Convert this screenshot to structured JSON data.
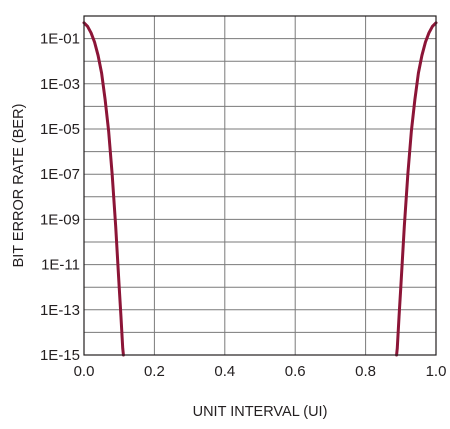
{
  "chart_data": {
    "type": "line",
    "title": "",
    "xlabel": "UNIT INTERVAL (UI)",
    "ylabel": "BIT ERROR RATE (BER)",
    "x_scale": "linear",
    "y_scale": "log",
    "xlim": [
      0.0,
      1.0
    ],
    "ylim": [
      1e-15,
      1
    ],
    "x_ticks": [
      0.0,
      0.2,
      0.4,
      0.6,
      0.8,
      1.0
    ],
    "x_tick_labels": [
      "0.0",
      "0.2",
      "0.4",
      "0.6",
      "0.8",
      "1.0"
    ],
    "y_ticks": [
      1e-15,
      1e-13,
      1e-11,
      1e-09,
      1e-07,
      1e-05,
      0.001,
      0.1
    ],
    "y_tick_labels": [
      "1E-15",
      "1E-13",
      "1E-11",
      "1E-09",
      "1E-07",
      "1E-05",
      "1E-03",
      "1E-01"
    ],
    "grid": true,
    "series": [
      {
        "color": "#8c1537",
        "points": [
          [
            0.0,
            0.5
          ],
          [
            0.01,
            0.35
          ],
          [
            0.02,
            0.18
          ],
          [
            0.03,
            0.07
          ],
          [
            0.04,
            0.018
          ],
          [
            0.05,
            0.003
          ],
          [
            0.06,
            0.0002
          ],
          [
            0.07,
            8e-06
          ],
          [
            0.08,
            1e-07
          ],
          [
            0.09,
            5e-10
          ],
          [
            0.1,
            1e-12
          ],
          [
            0.105,
            5e-14
          ],
          [
            0.11,
            2e-15
          ],
          [
            0.112,
            1e-15
          ]
        ]
      },
      {
        "color": "#8c1537",
        "points": [
          [
            0.888,
            1e-15
          ],
          [
            0.89,
            2e-15
          ],
          [
            0.895,
            5e-14
          ],
          [
            0.9,
            1e-12
          ],
          [
            0.91,
            5e-10
          ],
          [
            0.92,
            1e-07
          ],
          [
            0.93,
            8e-06
          ],
          [
            0.94,
            0.0002
          ],
          [
            0.95,
            0.003
          ],
          [
            0.96,
            0.018
          ],
          [
            0.97,
            0.07
          ],
          [
            0.98,
            0.18
          ],
          [
            0.99,
            0.35
          ],
          [
            1.0,
            0.5
          ]
        ]
      }
    ]
  }
}
